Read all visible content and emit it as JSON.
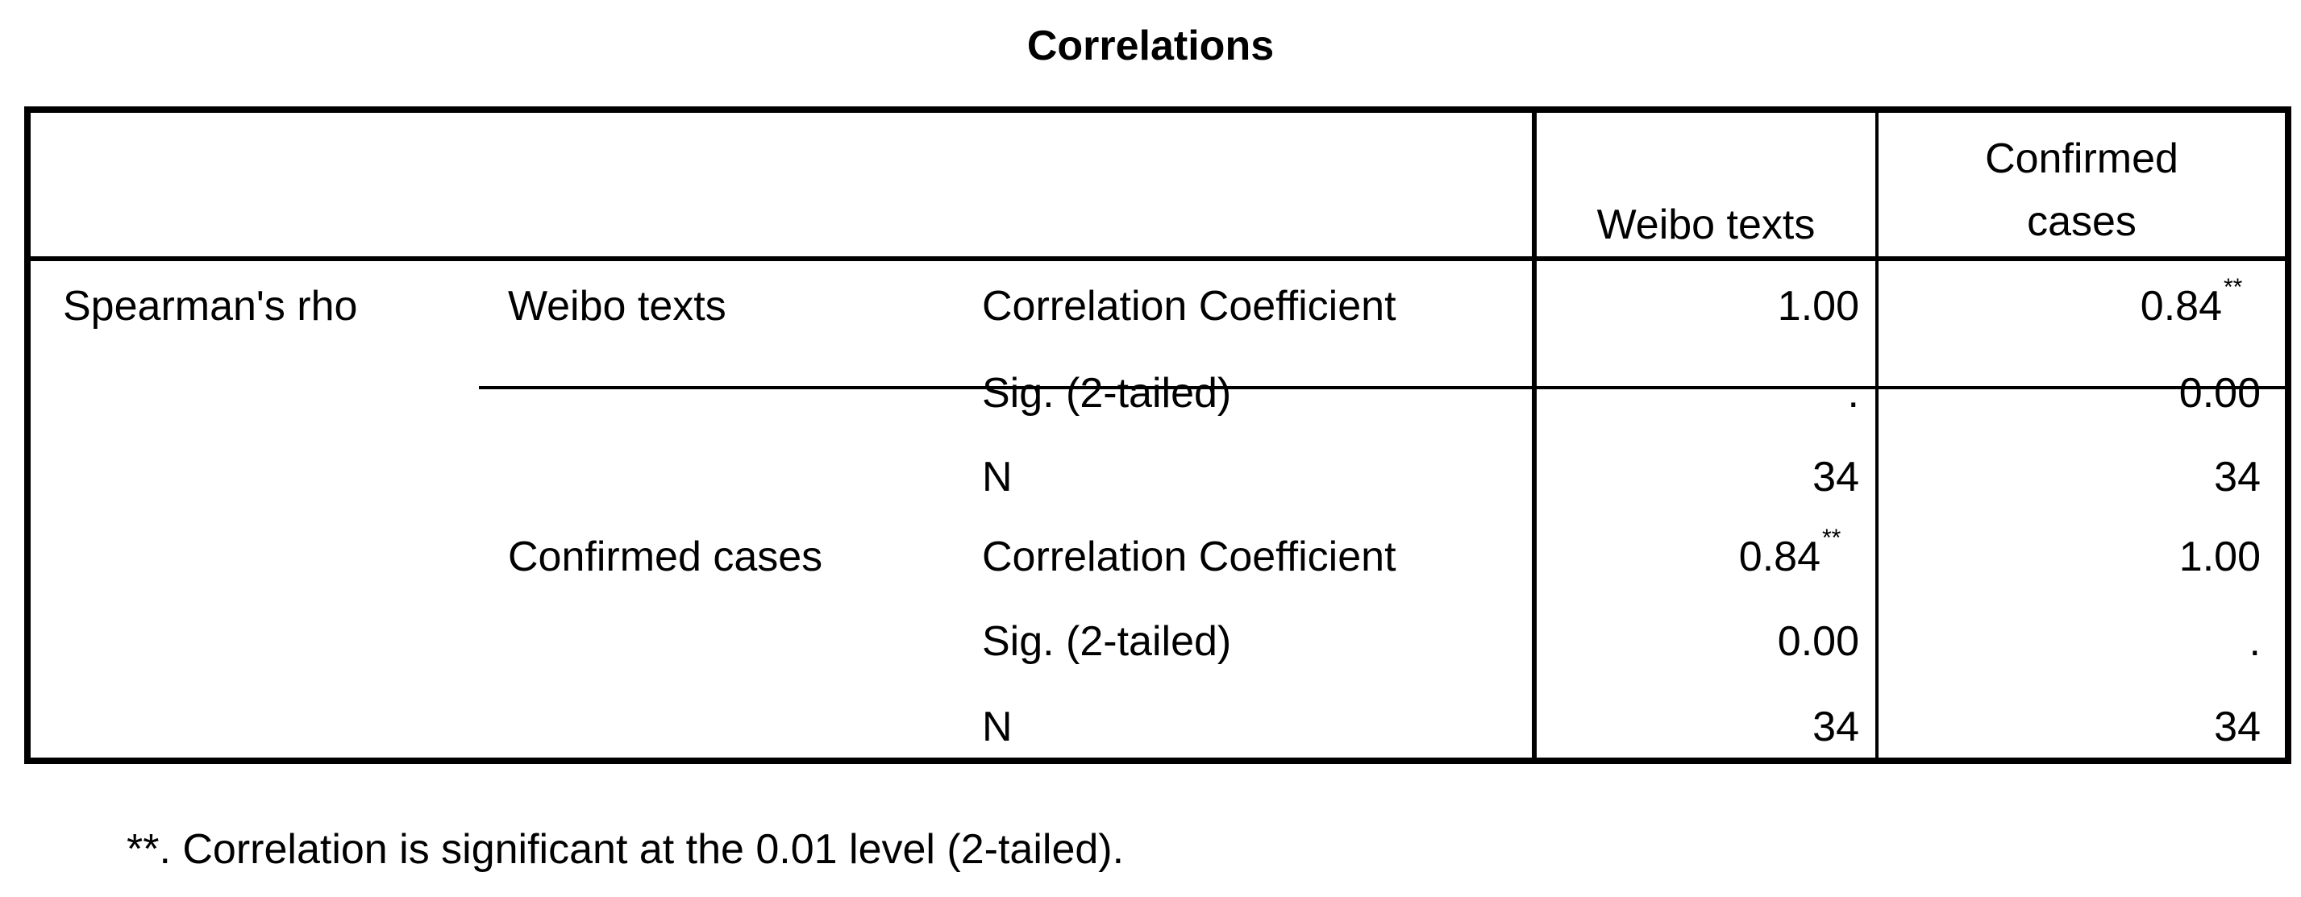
{
  "title": "Correlations",
  "header": {
    "col1": "Weibo texts",
    "col2": "Confirmed cases"
  },
  "rows": {
    "rho_label": "Spearman's rho",
    "groups": [
      {
        "variable": "Weibo texts",
        "stats": [
          {
            "label": "Correlation Coefficient",
            "v1": "1.00",
            "v1_sig": "",
            "v2": "0.84",
            "v2_sig": "**"
          },
          {
            "label": "Sig. (2-tailed)",
            "v1": ".",
            "v1_sig": "",
            "v2": "0.00",
            "v2_sig": ""
          },
          {
            "label": "N",
            "v1": "34",
            "v1_sig": "",
            "v2": "34",
            "v2_sig": ""
          }
        ]
      },
      {
        "variable": "Confirmed cases",
        "stats": [
          {
            "label": "Correlation Coefficient",
            "v1": "0.84",
            "v1_sig": "**",
            "v2": "1.00",
            "v2_sig": ""
          },
          {
            "label": "Sig. (2-tailed)",
            "v1": "0.00",
            "v1_sig": "",
            "v2": ".",
            "v2_sig": ""
          },
          {
            "label": "N",
            "v1": "34",
            "v1_sig": "",
            "v2": "34",
            "v2_sig": ""
          }
        ]
      }
    ]
  },
  "footnote": "**. Correlation is significant at the 0.01 level (2-tailed)."
}
